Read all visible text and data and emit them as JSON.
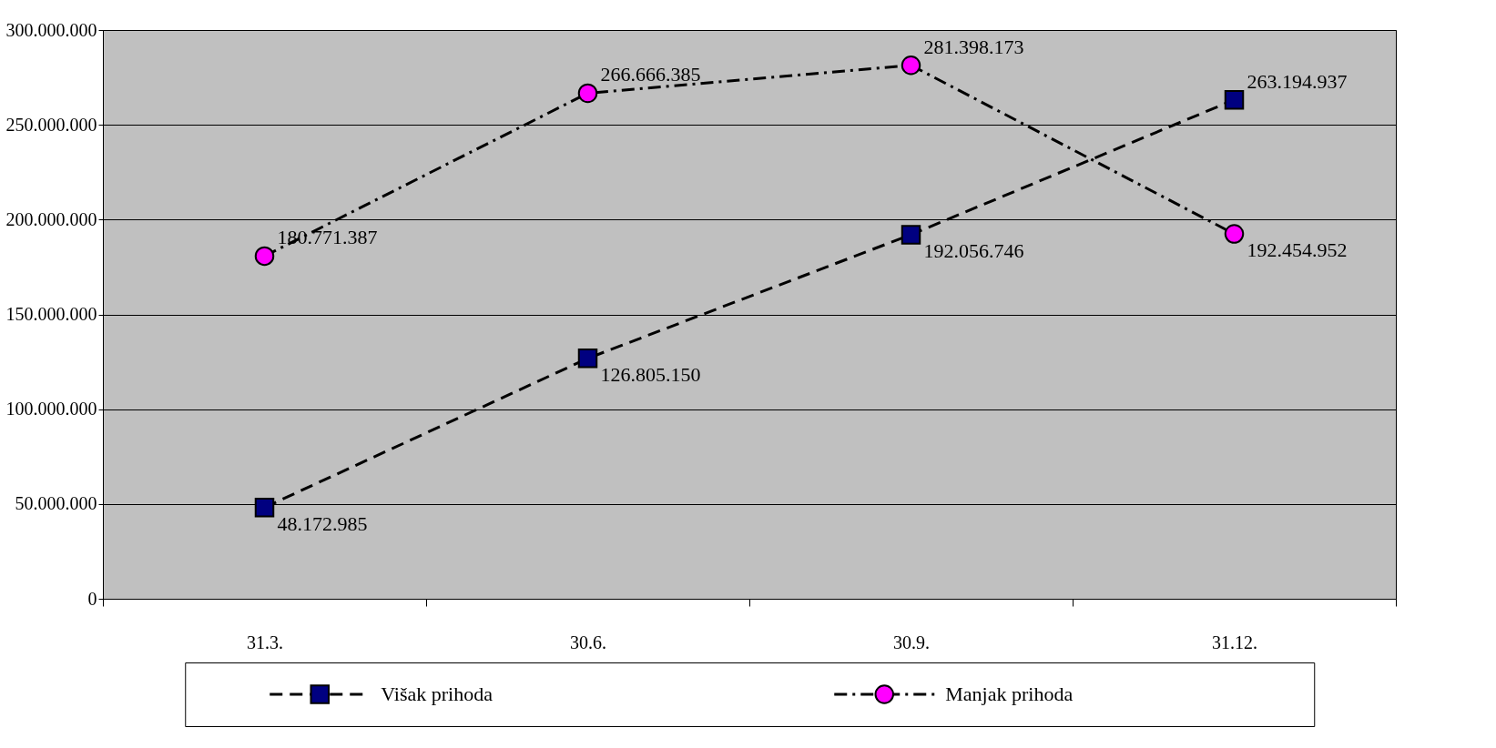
{
  "chart_data": {
    "type": "line",
    "categories": [
      "31.3.",
      "30.6.",
      "30.9.",
      "31.12."
    ],
    "series": [
      {
        "name": "Višak prihoda",
        "color": "#000080",
        "marker": "square",
        "line_style": "dashed",
        "values": [
          48172985,
          126805150,
          192056746,
          263194937
        ],
        "value_labels": [
          "48.172.985",
          "126.805.150",
          "192.056.746",
          "263.194.937"
        ]
      },
      {
        "name": "Manjak prihoda",
        "color": "#ff00ff",
        "marker": "circle",
        "line_style": "dashdot",
        "values": [
          180771387,
          266666385,
          281398173,
          192454952
        ],
        "value_labels": [
          "180.771.387",
          "266.666.385",
          "281.398.173",
          "192.454.952"
        ]
      }
    ],
    "ylim": [
      0,
      300000000
    ],
    "yticks": [
      {
        "value": 0,
        "label": "0"
      },
      {
        "value": 50000000,
        "label": "50.000.000"
      },
      {
        "value": 100000000,
        "label": "100.000.000"
      },
      {
        "value": 150000000,
        "label": "150.000.000"
      },
      {
        "value": 200000000,
        "label": "200.000.000"
      },
      {
        "value": 250000000,
        "label": "250.000.000"
      },
      {
        "value": 300000000,
        "label": "300.000.000"
      }
    ],
    "grid": "y",
    "legend": "bottom"
  }
}
